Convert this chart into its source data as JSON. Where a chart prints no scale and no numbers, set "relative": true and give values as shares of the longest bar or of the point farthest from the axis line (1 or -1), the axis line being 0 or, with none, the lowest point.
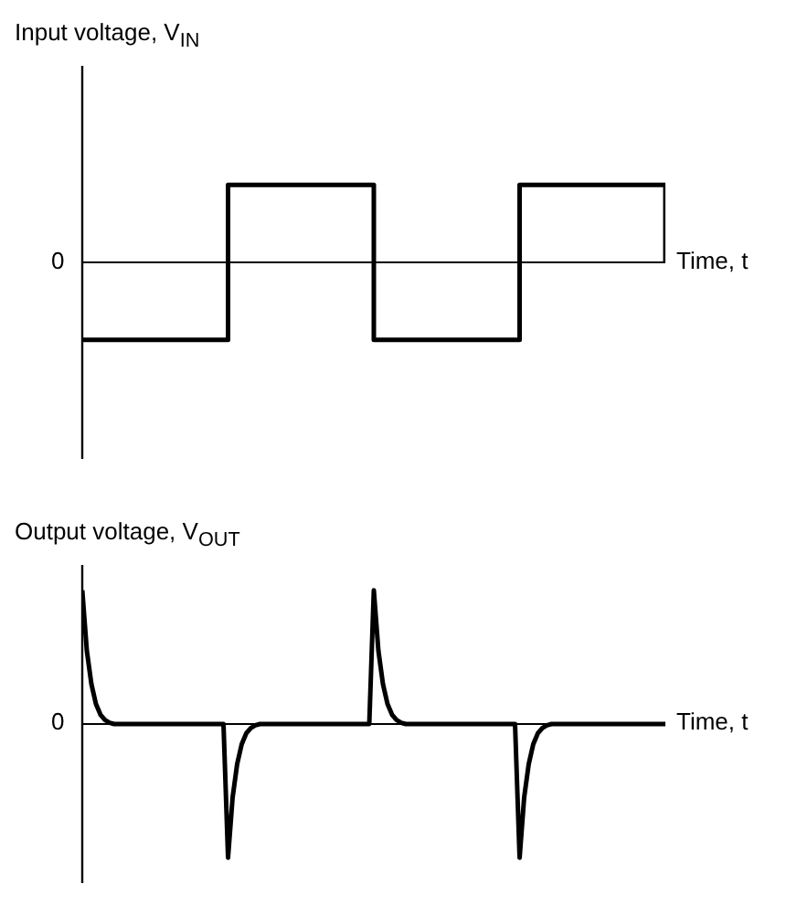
{
  "chart_data": [
    {
      "type": "step",
      "ylabel": "Input voltage, V$_{IN}$",
      "xlabel": "Time, t",
      "relative": true,
      "color": "#000000",
      "categories": [
        null,
        null,
        null,
        null,
        null
      ],
      "values": [
        -1,
        1,
        -1,
        1,
        0
      ],
      "annotations": [
        "0"
      ]
    },
    {
      "type": "line",
      "ylabel": "Output voltage, V$_{OUT}$",
      "xlabel": "Time, t",
      "relative": true,
      "color": "#000000",
      "categories": [
        null,
        null,
        null,
        null,
        null,
        null,
        null,
        null,
        null,
        null,
        null,
        null,
        null,
        null,
        null,
        null,
        null,
        null,
        null,
        null,
        null,
        null,
        null,
        null,
        null,
        null,
        null,
        null,
        null,
        null,
        null,
        null,
        null,
        null,
        null,
        null,
        null,
        null,
        null,
        null,
        null,
        null,
        null,
        null,
        null,
        null,
        null,
        null,
        null,
        null,
        null,
        null,
        null,
        null,
        null,
        null,
        null,
        null,
        null,
        null,
        null,
        null,
        null,
        null,
        null,
        null,
        null,
        null,
        null,
        null,
        null,
        null,
        null,
        null,
        null,
        null,
        null,
        null,
        null,
        null,
        null,
        null,
        null,
        null,
        null,
        null,
        null,
        null,
        null,
        null,
        null,
        null,
        null,
        null,
        null,
        null,
        null,
        null,
        null,
        null,
        null,
        null,
        null,
        null,
        null,
        null,
        null,
        null,
        null,
        null,
        null,
        null,
        null,
        null,
        null,
        null,
        null,
        null,
        null,
        null,
        null,
        null,
        null,
        null,
        null,
        null,
        null,
        null,
        null
      ],
      "values": [
        1,
        0.55,
        0.3,
        0.15,
        0.07,
        0.03,
        0.01,
        0,
        0,
        0,
        0,
        0,
        0,
        0,
        0,
        0,
        0,
        0,
        0,
        0,
        0,
        0,
        0,
        0,
        0,
        0,
        0,
        0,
        0,
        0,
        0,
        0,
        -1,
        -0.55,
        -0.3,
        -0.15,
        -0.07,
        -0.03,
        -0.01,
        0,
        0,
        0,
        0,
        0,
        0,
        0,
        0,
        0,
        0,
        0,
        0,
        0,
        0,
        0,
        0,
        0,
        0,
        0,
        0,
        0,
        0,
        0,
        0,
        0,
        1,
        0.55,
        0.3,
        0.15,
        0.07,
        0.03,
        0.01,
        0,
        0,
        0,
        0,
        0,
        0,
        0,
        0,
        0,
        0,
        0,
        0,
        0,
        0,
        0,
        0,
        0,
        0,
        0,
        0,
        0,
        0,
        0,
        0,
        0,
        -1,
        -0.55,
        -0.3,
        -0.15,
        -0.07,
        -0.03,
        -0.01,
        0,
        0,
        0,
        0,
        0,
        0,
        0,
        0,
        0,
        0,
        0,
        0,
        0,
        0,
        0,
        0,
        0,
        0,
        0,
        0,
        0,
        0,
        0,
        0,
        0,
        0
      ],
      "annotations": [
        "0"
      ]
    }
  ]
}
